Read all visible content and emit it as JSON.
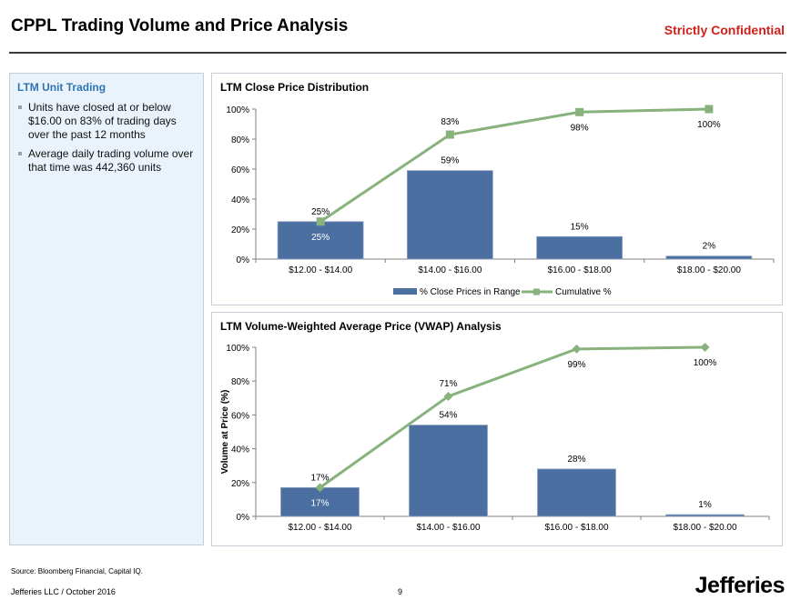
{
  "header": {
    "title": "CPPL Trading Volume and Price Analysis",
    "confidential": "Strictly Confidential"
  },
  "left_panel": {
    "title": "LTM Unit Trading",
    "bullets": [
      "Units have closed at or below $16.00 on 83% of trading days over the past 12 months",
      "Average daily trading volume over that time was 442,360 units"
    ]
  },
  "chart_data": [
    {
      "type": "bar",
      "title": "LTM Close Price Distribution",
      "categories": [
        "$12.00 - $14.00",
        "$14.00 - $16.00",
        "$16.00 - $18.00",
        "$18.00 - $20.00"
      ],
      "series": [
        {
          "name": "% Close Prices in Range",
          "type": "bar",
          "values": [
            25,
            59,
            15,
            2
          ],
          "labels": [
            "25%",
            "59%",
            "15%",
            "2%"
          ]
        },
        {
          "name": "Cumulative %",
          "type": "line",
          "values": [
            25,
            83,
            98,
            100
          ],
          "labels": [
            "25%",
            "83%",
            "98%",
            "100%"
          ]
        }
      ],
      "ylim": [
        0,
        100
      ],
      "yticks": [
        "0%",
        "20%",
        "40%",
        "60%",
        "80%",
        "100%"
      ],
      "ylabel": "",
      "legend": "bottom",
      "colors": {
        "bar": "#4a6fa0",
        "line": "#88b27c"
      }
    },
    {
      "type": "bar",
      "title": "LTM Volume-Weighted Average Price (VWAP) Analysis",
      "categories": [
        "$12.00 - $14.00",
        "$14.00 - $16.00",
        "$16.00 - $18.00",
        "$18.00 - $20.00"
      ],
      "series": [
        {
          "type": "bar",
          "values": [
            17,
            54,
            28,
            1
          ],
          "labels": [
            "17%",
            "54%",
            "28%",
            "1%"
          ]
        },
        {
          "type": "line",
          "values": [
            17,
            71,
            99,
            100
          ],
          "labels": [
            "17%",
            "71%",
            "99%",
            "100%"
          ]
        }
      ],
      "ylim": [
        0,
        100
      ],
      "yticks": [
        "0%",
        "20%",
        "40%",
        "60%",
        "80%",
        "100%"
      ],
      "ylabel": "Volume at Price (%)",
      "legend": "none",
      "colors": {
        "bar": "#4a6fa0",
        "line": "#88b27c"
      }
    }
  ],
  "footer": {
    "source": "Source: Bloomberg Financial, Capital IQ.",
    "left": "Jefferies LLC / October 2016",
    "page": "9",
    "logo": "Jefferies"
  }
}
